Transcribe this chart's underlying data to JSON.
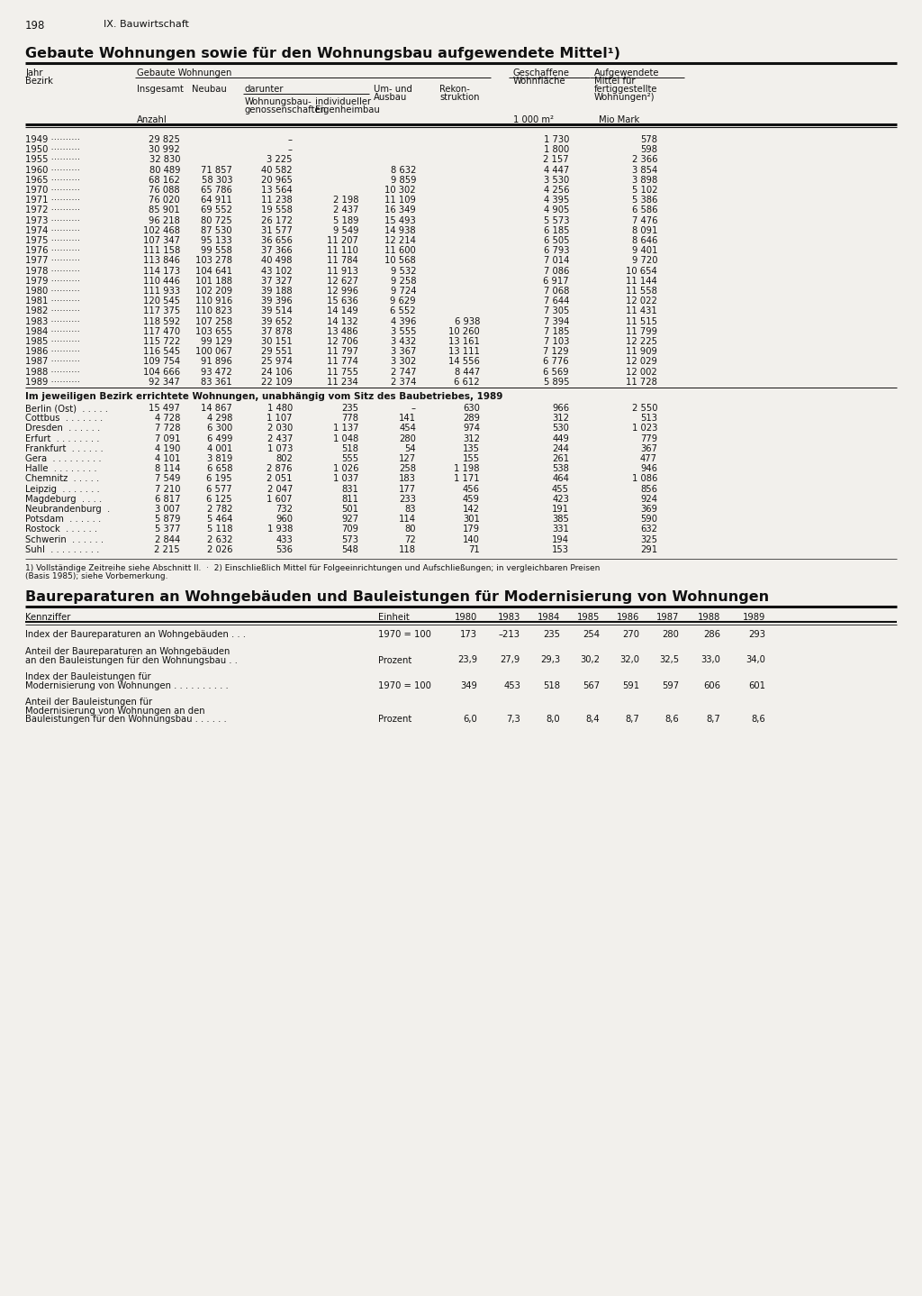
{
  "page_num": "198",
  "section": "IX. Bauwirtschaft",
  "bg_color": "#f2f0ec",
  "yearly_data": [
    [
      "1949",
      "29 825",
      "",
      "–",
      "",
      "",
      "",
      "1 730",
      "578"
    ],
    [
      "1950",
      "30 992",
      "",
      "–",
      "",
      "",
      "",
      "1 800",
      "598"
    ],
    [
      "1955",
      "32 830",
      "",
      "3 225",
      "",
      "",
      "",
      "2 157",
      "2 366"
    ],
    [
      "1960",
      "80 489",
      "71 857",
      "40 582",
      "",
      "8 632",
      "",
      "4 447",
      "3 854"
    ],
    [
      "1965",
      "68 162",
      "58 303",
      "20 965",
      "",
      "9 859",
      "",
      "3 530",
      "3 898"
    ],
    [
      "1970",
      "76 088",
      "65 786",
      "13 564",
      "",
      "10 302",
      "",
      "4 256",
      "5 102"
    ],
    [
      "1971",
      "76 020",
      "64 911",
      "11 238",
      "2 198",
      "11 109",
      "",
      "4 395",
      "5 386"
    ],
    [
      "1972",
      "85 901",
      "69 552",
      "19 558",
      "2 437",
      "16 349",
      "",
      "4 905",
      "6 586"
    ],
    [
      "1973",
      "96 218",
      "80 725",
      "26 172",
      "5 189",
      "15 493",
      "",
      "5 573",
      "7 476"
    ],
    [
      "1974",
      "102 468",
      "87 530",
      "31 577",
      "9 549",
      "14 938",
      "",
      "6 185",
      "8 091"
    ],
    [
      "1975",
      "107 347",
      "95 133",
      "36 656",
      "11 207",
      "12 214",
      "",
      "6 505",
      "8 646"
    ],
    [
      "1976",
      "111 158",
      "99 558",
      "37 366",
      "11 110",
      "11 600",
      "",
      "6 793",
      "9 401"
    ],
    [
      "1977",
      "113 846",
      "103 278",
      "40 498",
      "11 784",
      "10 568",
      "",
      "7 014",
      "9 720"
    ],
    [
      "1978",
      "114 173",
      "104 641",
      "43 102",
      "11 913",
      "9 532",
      "",
      "7 086",
      "10 654"
    ],
    [
      "1979",
      "110 446",
      "101 188",
      "37 327",
      "12 627",
      "9 258",
      "",
      "6 917",
      "11 144"
    ],
    [
      "1980",
      "111 933",
      "102 209",
      "39 188",
      "12 996",
      "9 724",
      "",
      "7 068",
      "11 558"
    ],
    [
      "1981",
      "120 545",
      "110 916",
      "39 396",
      "15 636",
      "9 629",
      "",
      "7 644",
      "12 022"
    ],
    [
      "1982",
      "117 375",
      "110 823",
      "39 514",
      "14 149",
      "6 552",
      "",
      "7 305",
      "11 431"
    ],
    [
      "1983",
      "118 592",
      "107 258",
      "39 652",
      "14 132",
      "4 396",
      "6 938",
      "7 394",
      "11 515"
    ],
    [
      "1984",
      "117 470",
      "103 655",
      "37 878",
      "13 486",
      "3 555",
      "10 260",
      "7 185",
      "11 799"
    ],
    [
      "1985",
      "115 722",
      "99 129",
      "30 151",
      "12 706",
      "3 432",
      "13 161",
      "7 103",
      "12 225"
    ],
    [
      "1986",
      "116 545",
      "100 067",
      "29 551",
      "11 797",
      "3 367",
      "13 111",
      "7 129",
      "11 909"
    ],
    [
      "1987",
      "109 754",
      "91 896",
      "25 974",
      "11 774",
      "3 302",
      "14 556",
      "6 776",
      "12 029"
    ],
    [
      "1988",
      "104 666",
      "93 472",
      "24 106",
      "11 755",
      "2 747",
      "8 447",
      "6 569",
      "12 002"
    ],
    [
      "1989",
      "92 347",
      "83 361",
      "22 109",
      "11 234",
      "2 374",
      "6 612",
      "5 895",
      "11 728"
    ]
  ],
  "bezirk_data": [
    [
      "Berlin (Ost)",
      "15 497",
      "14 867",
      "1 480",
      "235",
      "–",
      "630",
      "966",
      "2 550"
    ],
    [
      "Cottbus",
      "4 728",
      "4 298",
      "1 107",
      "778",
      "141",
      "289",
      "312",
      "513"
    ],
    [
      "Dresden",
      "7 728",
      "6 300",
      "2 030",
      "1 137",
      "454",
      "974",
      "530",
      "1 023"
    ],
    [
      "Erfurt",
      "7 091",
      "6 499",
      "2 437",
      "1 048",
      "280",
      "312",
      "449",
      "779"
    ],
    [
      "Frankfurt",
      "4 190",
      "4 001",
      "1 073",
      "518",
      "54",
      "135",
      "244",
      "367"
    ],
    [
      "Gera",
      "4 101",
      "3 819",
      "802",
      "555",
      "127",
      "155",
      "261",
      "477"
    ],
    [
      "Halle",
      "8 114",
      "6 658",
      "2 876",
      "1 026",
      "258",
      "1 198",
      "538",
      "946"
    ],
    [
      "Chemnitz",
      "7 549",
      "6 195",
      "2 051",
      "1 037",
      "183",
      "1 171",
      "464",
      "1 086"
    ],
    [
      "Leipzig",
      "7 210",
      "6 577",
      "2 047",
      "831",
      "177",
      "456",
      "455",
      "856"
    ],
    [
      "Magdeburg",
      "6 817",
      "6 125",
      "1 607",
      "811",
      "233",
      "459",
      "423",
      "924"
    ],
    [
      "Neubrandenburg",
      "3 007",
      "2 782",
      "732",
      "501",
      "83",
      "142",
      "191",
      "369"
    ],
    [
      "Potsdam",
      "5 879",
      "5 464",
      "960",
      "927",
      "114",
      "301",
      "385",
      "590"
    ],
    [
      "Rostock",
      "5 377",
      "5 118",
      "1 938",
      "709",
      "80",
      "179",
      "331",
      "632"
    ],
    [
      "Schwerin",
      "2 844",
      "2 632",
      "433",
      "573",
      "72",
      "140",
      "194",
      "325"
    ],
    [
      "Suhl",
      "2 215",
      "2 026",
      "536",
      "548",
      "118",
      "71",
      "153",
      "291"
    ]
  ],
  "bezirk_dots": {
    "Berlin (Ost)": "Berlin (Ost)  . . . . .",
    "Cottbus": "Cottbus  . . . . . . .",
    "Dresden": "Dresden  . . . . . .",
    "Erfurt": "Erfurt  . . . . . . . .",
    "Frankfurt": "Frankfurt  . . . . . .",
    "Gera": "Gera  . . . . . . . . .",
    "Halle": "Halle  . . . . . . . .",
    "Chemnitz": "Chemnitz  . . . . .",
    "Leipzig": "Leipzig  . . . . . . .",
    "Magdeburg": "Magdeburg  . . . .",
    "Neubrandenburg": "Neubrandenburg  .",
    "Potsdam": "Potsdam  . . . . . .",
    "Rostock": "Rostock  . . . . . .",
    "Schwerin": "Schwerin  . . . . . .",
    "Suhl": "Suhl  . . . . . . . . ."
  },
  "table2_rows": [
    {
      "label_lines": [
        "Index der Baureparaturen an Wohngebäuden . . ."
      ],
      "unit": "1970 = 100",
      "values": [
        "173",
        "–213",
        "235",
        "254",
        "270",
        "280",
        "286",
        "293"
      ]
    },
    {
      "label_lines": [
        "Anteil der Baureparaturen an Wohngebäuden",
        "an den Bauleistungen für den Wohnungsbau . ."
      ],
      "unit": "Prozent",
      "values": [
        "23,9",
        "27,9",
        "29,3",
        "30,2",
        "32,0",
        "32,5",
        "33,0",
        "34,0"
      ]
    },
    {
      "label_lines": [
        "Index der Bauleistungen für",
        "Modernisierung von Wohnungen . . . . . . . . . ."
      ],
      "unit": "1970 = 100",
      "values": [
        "349",
        "453",
        "518",
        "567",
        "591",
        "597",
        "606",
        "601"
      ]
    },
    {
      "label_lines": [
        "Anteil der Bauleistungen für",
        "Modernisierung von Wohnungen an den",
        "Bauleistungen für den Wohnungsbau . . . . . ."
      ],
      "unit": "Prozent",
      "values": [
        "6,0",
        "7,3",
        "8,0",
        "8,4",
        "8,7",
        "8,6",
        "8,7",
        "8,6"
      ]
    }
  ]
}
